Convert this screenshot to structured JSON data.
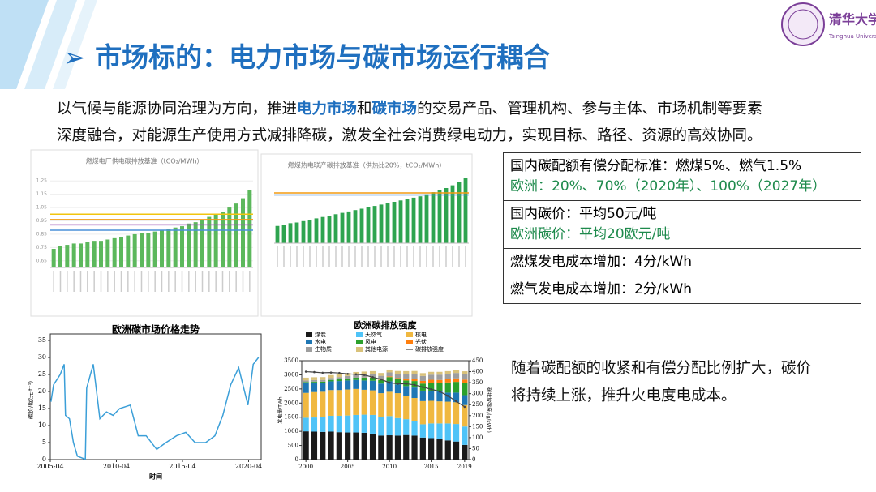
{
  "header": {
    "title": "市场标的：电力市场与碳市场运行耦合",
    "logo_cn": "清华大学",
    "logo_en": "Tsinghua University"
  },
  "intro": {
    "line1": [
      "以气候与能源协同治理为方向，推进",
      "电力市场",
      "和",
      "碳市场",
      "的交易产品、管理机构、参与主体、市场机制等要素"
    ],
    "line2": "深度融合，对能源生产使用方式减排降碳，激发全社会消费绿电动力，实现目标、路径、资源的高效协同。"
  },
  "table": {
    "rows": [
      [
        "国内碳配额有偿分配标准：燃煤5%、燃气1.5%",
        "欧洲：20%、70%（2020年）、100%（2027年）"
      ],
      [
        "国内碳价：平均50元/吨",
        "欧洲碳价：平均20欧元/吨"
      ],
      [
        "燃煤发电成本增加：4分/kWh"
      ],
      [
        "燃气发电成本增加：2分/kWh"
      ]
    ]
  },
  "conclusion": [
    "随着碳配额的收紧和有偿分配比例扩大，碳价",
    "将持续上涨，推升火电度电成本。"
  ],
  "chart_data": [
    {
      "type": "bar",
      "title": "燃煤电厂供电碳排放基准（tCO₂/MWh）",
      "color": "#5cb85c",
      "ylim": [
        0.6,
        1.3
      ],
      "yticks": [
        0.65,
        0.75,
        0.85,
        0.95,
        1.05,
        1.15,
        1.25
      ],
      "values": [
        0.74,
        0.76,
        0.77,
        0.78,
        0.78,
        0.79,
        0.8,
        0.8,
        0.81,
        0.82,
        0.83,
        0.84,
        0.85,
        0.86,
        0.86,
        0.87,
        0.88,
        0.89,
        0.9,
        0.91,
        0.93,
        0.94,
        0.96,
        0.98,
        1.0,
        1.02,
        1.05,
        1.08,
        1.12,
        1.18
      ],
      "reference_lines": [
        {
          "color": "#4a90d9",
          "value": 0.88
        },
        {
          "color": "#9b59b6",
          "value": 0.92
        },
        {
          "color": "#f39c12",
          "value": 0.96
        },
        {
          "color": "#f1c40f",
          "value": 1.0
        }
      ]
    },
    {
      "type": "bar",
      "title": "燃煤热电联产碳排放基准（供热比20%，tCO₂/MWh）",
      "color": "#2ea44f",
      "ylim": [
        0.6,
        1.6
      ],
      "values": [
        0.85,
        0.87,
        0.89,
        0.9,
        0.92,
        0.94,
        0.96,
        0.98,
        1.0,
        1.02,
        1.04,
        1.06,
        1.08,
        1.1,
        1.12,
        1.14,
        1.16,
        1.18,
        1.2,
        1.22,
        1.24,
        1.26,
        1.28,
        1.31,
        1.34,
        1.37,
        1.4,
        1.44,
        1.49,
        1.55
      ],
      "reference_lines": [
        {
          "color": "#4a90d9",
          "value": 1.3
        },
        {
          "color": "#f39c12",
          "value": 1.33
        }
      ]
    },
    {
      "type": "line",
      "title": "欧洲碳市场价格走势",
      "x_label": "时间",
      "y_label": "碳价/(欧元·t⁻¹)",
      "color": "#3b9fd8",
      "x": [
        2005.3,
        2005.5,
        2006.0,
        2006.3,
        2006.4,
        2006.7,
        2007.0,
        2007.3,
        2007.9,
        2008.0,
        2008.5,
        2009.0,
        2009.5,
        2010.0,
        2010.5,
        2011.3,
        2011.9,
        2012.5,
        2013.3,
        2014.0,
        2014.8,
        2015.5,
        2016.2,
        2017.0,
        2017.7,
        2018.3,
        2018.9,
        2019.5,
        2020.2,
        2020.6,
        2021.0
      ],
      "values": [
        17,
        22,
        25,
        28,
        13,
        12,
        5,
        1,
        0.1,
        21,
        28,
        12,
        14,
        13,
        15,
        16,
        7,
        7,
        3,
        5,
        7,
        8,
        5,
        5,
        7,
        13,
        22,
        27,
        16,
        28,
        30
      ],
      "xlim": [
        2005.25,
        2021.2
      ],
      "xticks": [
        {
          "value": 2005.25,
          "label": "2005-04"
        },
        {
          "value": 2010.25,
          "label": "2010-04"
        },
        {
          "value": 2015.25,
          "label": "2015-04"
        },
        {
          "value": 2020.25,
          "label": "2020-04"
        }
      ],
      "ylim": [
        0,
        35
      ],
      "yticks": [
        0,
        5,
        10,
        15,
        20,
        25,
        30,
        35
      ]
    },
    {
      "type": "stacked_bar",
      "title": "欧洲碳排放强度",
      "y_label": "发电量/TWh",
      "y2_label": "碳排放强度/(g/kWh)",
      "x": [
        2000,
        2001,
        2002,
        2003,
        2004,
        2005,
        2006,
        2007,
        2008,
        2009,
        2010,
        2011,
        2012,
        2013,
        2014,
        2015,
        2016,
        2017,
        2018,
        2019
      ],
      "xlim": [
        1999.5,
        2019.5
      ],
      "xticks": [
        2000,
        2005,
        2010,
        2015,
        2019
      ],
      "ylim": [
        0,
        3500
      ],
      "yticks": [
        0,
        500,
        1000,
        1500,
        2000,
        2500,
        3000,
        3500
      ],
      "y2lim": [
        0,
        450
      ],
      "y2ticks": [
        0,
        50,
        100,
        150,
        200,
        250,
        300,
        350,
        400,
        450
      ],
      "series": [
        {
          "name": "煤炭",
          "color": "#1a1a1a",
          "values": [
            1000,
            990,
            980,
            990,
            970,
            960,
            960,
            950,
            920,
            850,
            860,
            850,
            870,
            850,
            780,
            760,
            720,
            680,
            640,
            520
          ]
        },
        {
          "name": "天然气",
          "color": "#4fc3f7",
          "values": [
            480,
            500,
            520,
            560,
            580,
            600,
            620,
            640,
            660,
            650,
            680,
            620,
            560,
            500,
            470,
            520,
            560,
            600,
            620,
            650
          ]
        },
        {
          "name": "核电",
          "color": "#f0b840",
          "values": [
            880,
            900,
            900,
            910,
            910,
            920,
            920,
            880,
            870,
            850,
            860,
            880,
            830,
            830,
            820,
            800,
            780,
            770,
            770,
            760
          ]
        },
        {
          "name": "水电",
          "color": "#1f77b4",
          "values": [
            370,
            340,
            320,
            310,
            320,
            320,
            320,
            330,
            340,
            340,
            370,
            310,
            340,
            370,
            370,
            340,
            350,
            320,
            340,
            350
          ]
        },
        {
          "name": "风电",
          "color": "#2ca02c",
          "values": [
            20,
            30,
            40,
            50,
            60,
            70,
            80,
            100,
            110,
            130,
            150,
            180,
            200,
            230,
            250,
            300,
            300,
            360,
            380,
            420
          ]
        },
        {
          "name": "光伏",
          "color": "#ff7f0e",
          "values": [
            0,
            0,
            0,
            0,
            0,
            0,
            0,
            5,
            10,
            15,
            25,
            45,
            70,
            85,
            95,
            105,
            110,
            115,
            125,
            130
          ]
        },
        {
          "name": "生物质",
          "color": "#9e9e9e",
          "values": [
            50,
            55,
            60,
            70,
            80,
            90,
            100,
            110,
            120,
            130,
            140,
            150,
            160,
            170,
            175,
            180,
            185,
            185,
            190,
            195
          ]
        },
        {
          "name": "其他电源",
          "color": "#d9c27a",
          "values": [
            100,
            100,
            100,
            100,
            100,
            100,
            100,
            100,
            100,
            100,
            100,
            100,
            100,
            100,
            100,
            100,
            100,
            100,
            100,
            100
          ]
        },
        {
          "name": "碳排放强度",
          "color": "#444444",
          "axis": "y2",
          "values": [
            400,
            398,
            395,
            396,
            394,
            390,
            388,
            385,
            375,
            365,
            350,
            345,
            345,
            340,
            330,
            320,
            310,
            290,
            265,
            240
          ]
        }
      ]
    }
  ]
}
